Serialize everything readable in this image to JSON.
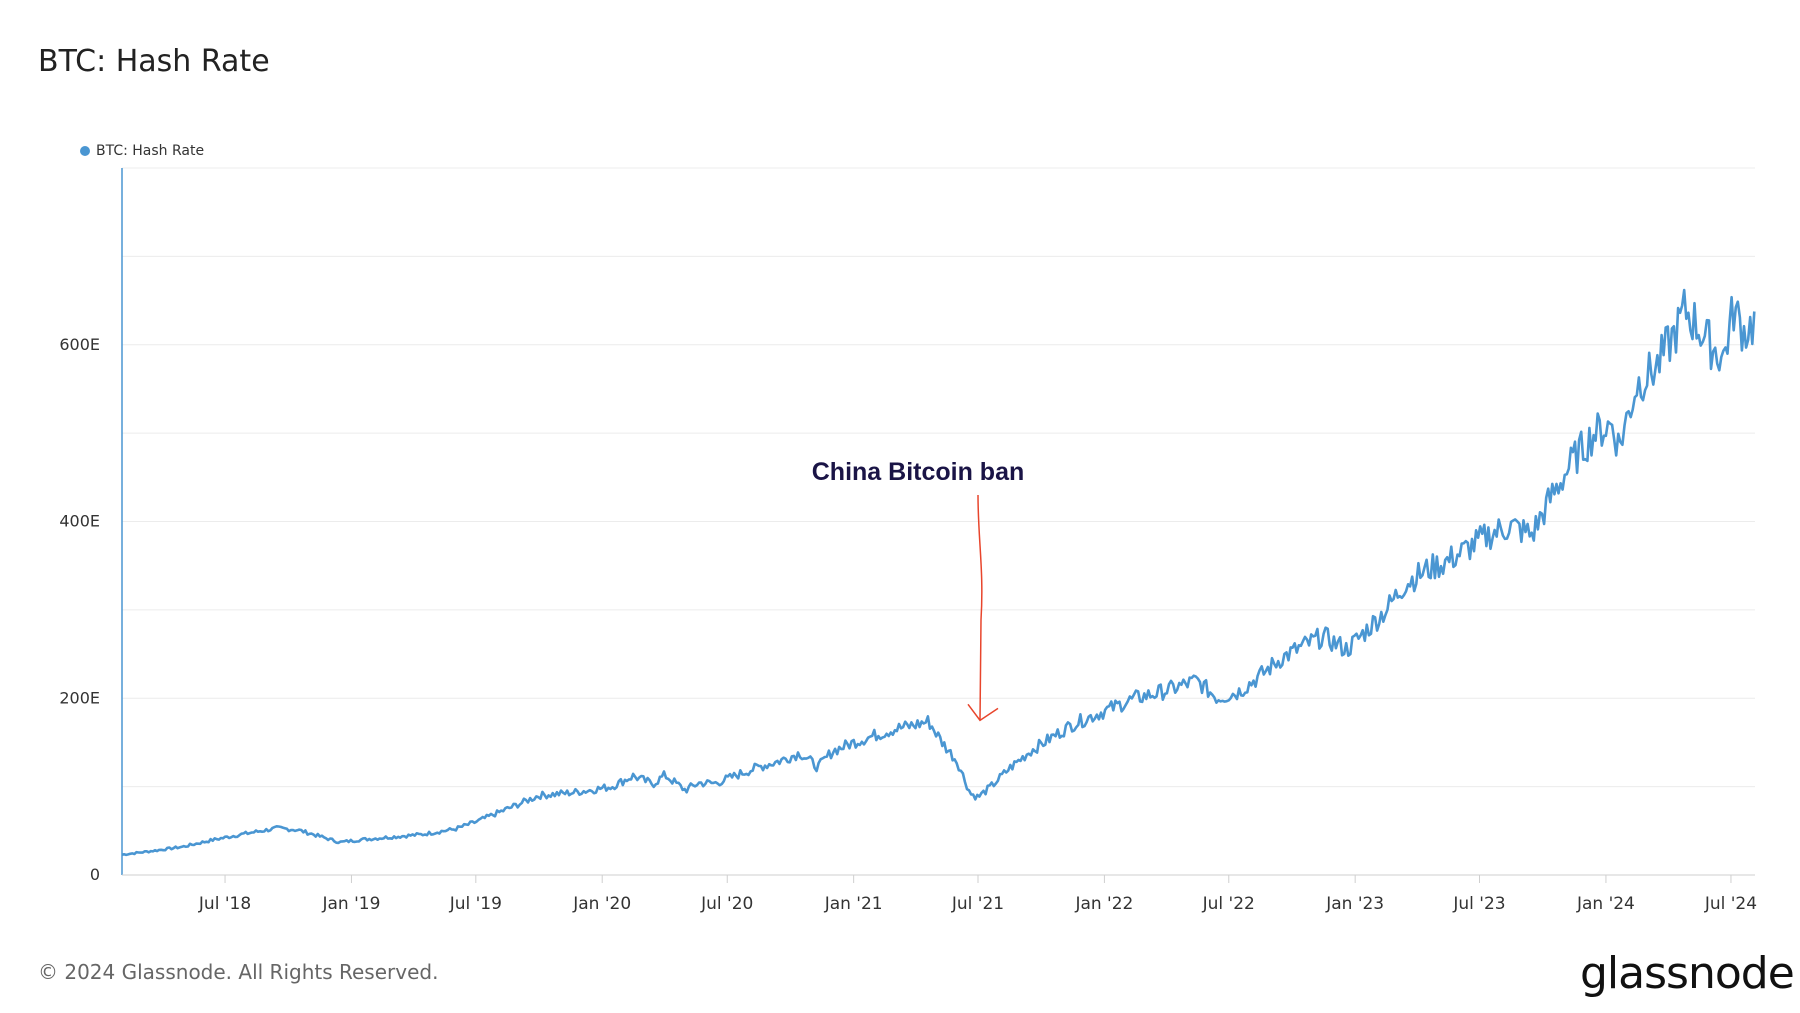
{
  "header": {
    "title": "BTC: Hash Rate"
  },
  "legend": {
    "label": "BTC: Hash Rate",
    "color": "#4a96d2"
  },
  "footer": {
    "copyright": "© 2024 Glassnode. All Rights Reserved."
  },
  "brand": {
    "logo_text": "glassnode"
  },
  "colors": {
    "series": "#4a96d2",
    "annotation": "#e8452c",
    "annotation_text": "#1a1446",
    "grid": "#ececec",
    "axis_left": "#4a96d2"
  },
  "chart_data": {
    "type": "line",
    "title": "BTC: Hash Rate",
    "xlabel": "",
    "ylabel": "",
    "ylim": [
      0,
      800
    ],
    "y_ticks": [
      {
        "value": 0,
        "label": "0"
      },
      {
        "value": 200,
        "label": "200E"
      },
      {
        "value": 400,
        "label": "400E"
      },
      {
        "value": 600,
        "label": "600E"
      }
    ],
    "x_ticks": [
      {
        "date": "2018-07-01",
        "label": "Jul '18"
      },
      {
        "date": "2019-01-01",
        "label": "Jan '19"
      },
      {
        "date": "2019-07-01",
        "label": "Jul '19"
      },
      {
        "date": "2020-01-01",
        "label": "Jan '20"
      },
      {
        "date": "2020-07-01",
        "label": "Jul '20"
      },
      {
        "date": "2021-01-01",
        "label": "Jan '21"
      },
      {
        "date": "2021-07-01",
        "label": "Jul '21"
      },
      {
        "date": "2022-01-01",
        "label": "Jan '22"
      },
      {
        "date": "2022-07-01",
        "label": "Jul '22"
      },
      {
        "date": "2023-01-01",
        "label": "Jan '23"
      },
      {
        "date": "2023-07-01",
        "label": "Jul '23"
      },
      {
        "date": "2024-01-01",
        "label": "Jan '24"
      },
      {
        "date": "2024-07-01",
        "label": "Jul '24"
      }
    ],
    "xlim": [
      "2018-02-01",
      "2024-08-05"
    ],
    "grid": true,
    "legend_position": "top-left",
    "series": [
      {
        "name": "BTC: Hash Rate",
        "x": [
          "2018-02-01",
          "2018-03-15",
          "2018-05-01",
          "2018-06-15",
          "2018-08-01",
          "2018-09-15",
          "2018-10-15",
          "2018-11-15",
          "2018-12-15",
          "2019-01-15",
          "2019-03-01",
          "2019-04-15",
          "2019-06-01",
          "2019-07-01",
          "2019-08-01",
          "2019-09-01",
          "2019-10-01",
          "2019-11-15",
          "2019-12-15",
          "2020-01-15",
          "2020-02-15",
          "2020-03-15",
          "2020-04-01",
          "2020-05-01",
          "2020-05-20",
          "2020-06-15",
          "2020-07-15",
          "2020-08-15",
          "2020-09-15",
          "2020-10-15",
          "2020-11-10",
          "2020-12-01",
          "2021-01-01",
          "2021-02-01",
          "2021-03-01",
          "2021-04-01",
          "2021-04-20",
          "2021-05-10",
          "2021-06-01",
          "2021-06-20",
          "2021-07-01",
          "2021-07-20",
          "2021-08-15",
          "2021-09-15",
          "2021-10-15",
          "2021-11-15",
          "2021-12-15",
          "2022-01-15",
          "2022-02-15",
          "2022-03-15",
          "2022-04-15",
          "2022-05-15",
          "2022-06-15",
          "2022-07-15",
          "2022-08-15",
          "2022-09-15",
          "2022-10-15",
          "2022-11-15",
          "2022-12-20",
          "2023-01-15",
          "2023-02-15",
          "2023-03-15",
          "2023-04-15",
          "2023-05-15",
          "2023-06-15",
          "2023-07-15",
          "2023-08-15",
          "2023-09-15",
          "2023-10-15",
          "2023-11-15",
          "2023-12-15",
          "2024-01-10",
          "2024-01-20",
          "2024-02-15",
          "2024-03-15",
          "2024-04-15",
          "2024-04-25",
          "2024-05-10",
          "2024-06-01",
          "2024-06-20",
          "2024-07-05",
          "2024-07-20",
          "2024-08-05"
        ],
        "y": [
          23,
          27,
          32,
          40,
          47,
          53,
          51,
          44,
          37,
          40,
          43,
          46,
          52,
          60,
          70,
          80,
          90,
          93,
          96,
          100,
          112,
          103,
          113,
          96,
          104,
          104,
          113,
          122,
          129,
          138,
          122,
          140,
          150,
          158,
          165,
          170,
          174,
          150,
          128,
          92,
          88,
          100,
          120,
          140,
          155,
          170,
          180,
          190,
          200,
          205,
          212,
          220,
          200,
          207,
          225,
          245,
          258,
          270,
          255,
          275,
          300,
          330,
          345,
          355,
          370,
          385,
          395,
          385,
          430,
          470,
          500,
          510,
          485,
          555,
          575,
          620,
          640,
          625,
          600,
          585,
          640,
          615,
          625
        ]
      }
    ],
    "annotations": [
      {
        "text": "China Bitcoin ban",
        "date": "2021-07-01",
        "value": 175
      }
    ]
  }
}
